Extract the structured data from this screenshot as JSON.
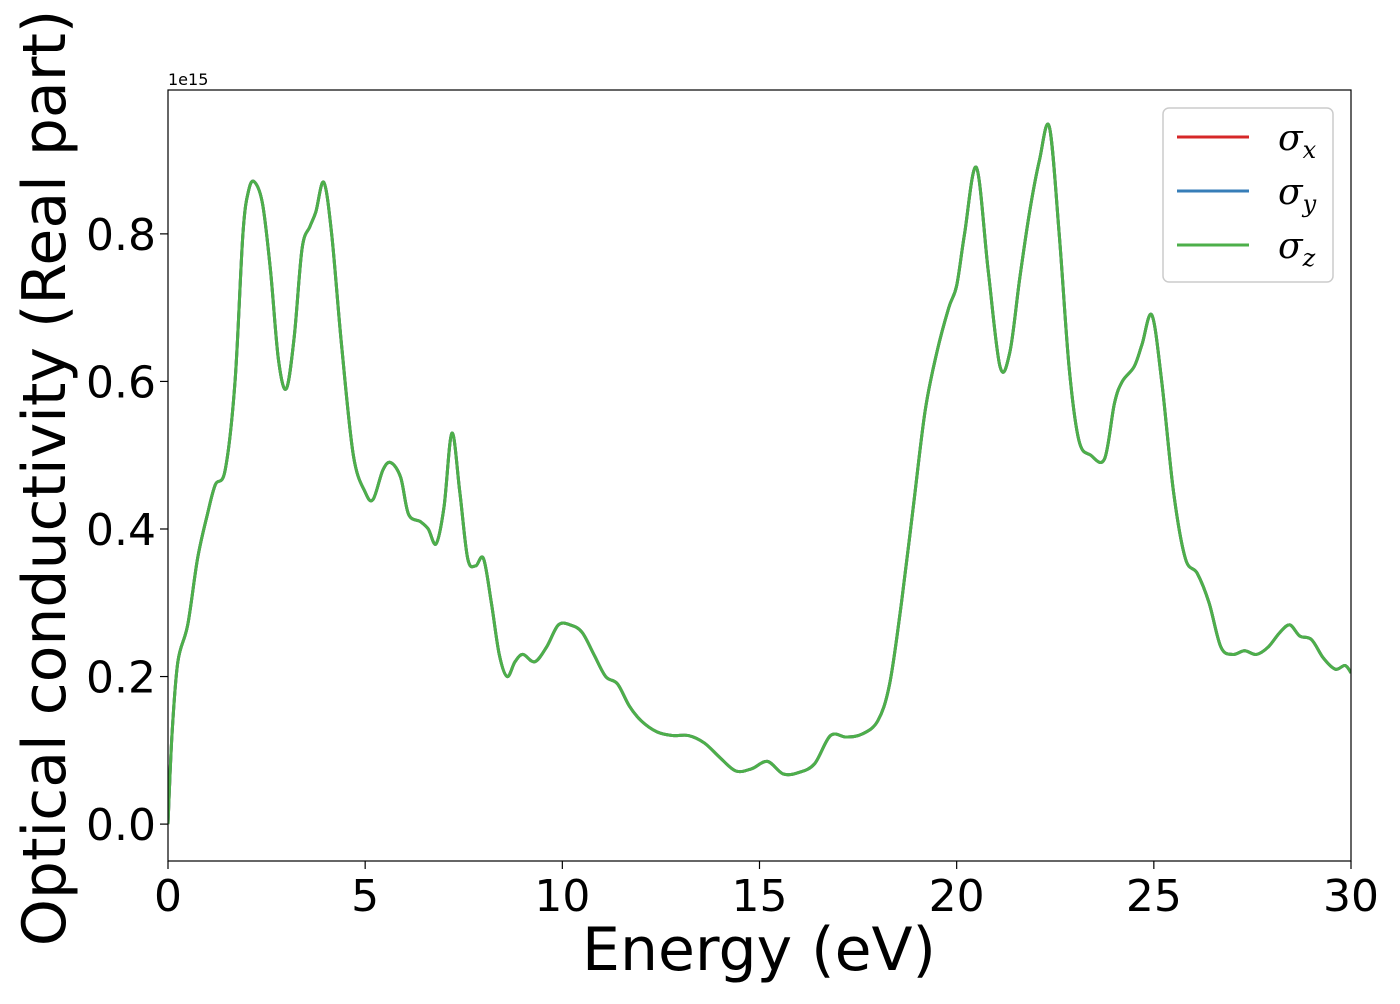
{
  "chart_data": {
    "type": "line",
    "title": "",
    "xlabel": "Energy (eV)",
    "ylabel": "Optical conductivity (Real part)",
    "y_offset_label": "1e15",
    "xlim": [
      0,
      30
    ],
    "ylim": [
      -0.05,
      0.995
    ],
    "xticks": [
      0,
      5,
      10,
      15,
      20,
      25,
      30
    ],
    "xtick_labels": [
      "0",
      "5",
      "10",
      "15",
      "20",
      "25",
      "30"
    ],
    "yticks": [
      0.0,
      0.2,
      0.4,
      0.6,
      0.8
    ],
    "ytick_labels": [
      "0.0",
      "0.2",
      "0.4",
      "0.6",
      "0.8"
    ],
    "grid": false,
    "legend_position": "top-right",
    "x": [
      0.0,
      0.1,
      0.25,
      0.5,
      0.75,
      1.0,
      1.2,
      1.45,
      1.7,
      1.9,
      2.05,
      2.2,
      2.4,
      2.6,
      2.8,
      3.0,
      3.2,
      3.4,
      3.6,
      3.75,
      3.95,
      4.15,
      4.4,
      4.7,
      5.0,
      5.2,
      5.45,
      5.65,
      5.9,
      6.1,
      6.4,
      6.6,
      6.8,
      7.0,
      7.2,
      7.4,
      7.6,
      7.8,
      8.0,
      8.2,
      8.4,
      8.6,
      8.8,
      9.0,
      9.3,
      9.6,
      9.9,
      10.2,
      10.5,
      10.8,
      11.1,
      11.4,
      11.7,
      12.0,
      12.4,
      12.8,
      13.2,
      13.6,
      14.0,
      14.4,
      14.8,
      15.2,
      15.6,
      16.0,
      16.4,
      16.8,
      17.2,
      17.6,
      18.0,
      18.3,
      18.6,
      18.9,
      19.2,
      19.5,
      19.8,
      20.0,
      20.2,
      20.5,
      20.8,
      21.1,
      21.35,
      21.6,
      21.85,
      22.1,
      22.35,
      22.6,
      22.85,
      23.1,
      23.4,
      23.75,
      24.0,
      24.2,
      24.5,
      24.7,
      24.95,
      25.2,
      25.5,
      25.8,
      26.1,
      26.4,
      26.7,
      27.0,
      27.3,
      27.6,
      27.9,
      28.2,
      28.45,
      28.7,
      29.0,
      29.3,
      29.6,
      29.85,
      30.0
    ],
    "series": [
      {
        "name": "σx",
        "color": "#d62728",
        "values": [
          0.0,
          0.12,
          0.22,
          0.27,
          0.36,
          0.42,
          0.46,
          0.48,
          0.6,
          0.8,
          0.86,
          0.87,
          0.84,
          0.75,
          0.63,
          0.59,
          0.66,
          0.78,
          0.81,
          0.83,
          0.87,
          0.8,
          0.65,
          0.5,
          0.45,
          0.44,
          0.48,
          0.49,
          0.47,
          0.42,
          0.41,
          0.4,
          0.38,
          0.43,
          0.53,
          0.45,
          0.36,
          0.35,
          0.36,
          0.3,
          0.23,
          0.2,
          0.22,
          0.23,
          0.22,
          0.24,
          0.27,
          0.27,
          0.26,
          0.23,
          0.2,
          0.19,
          0.16,
          0.14,
          0.125,
          0.12,
          0.12,
          0.11,
          0.09,
          0.072,
          0.075,
          0.085,
          0.068,
          0.07,
          0.082,
          0.12,
          0.118,
          0.122,
          0.14,
          0.19,
          0.3,
          0.43,
          0.56,
          0.64,
          0.7,
          0.73,
          0.8,
          0.89,
          0.75,
          0.62,
          0.64,
          0.74,
          0.83,
          0.9,
          0.945,
          0.8,
          0.62,
          0.52,
          0.5,
          0.495,
          0.57,
          0.6,
          0.62,
          0.65,
          0.69,
          0.6,
          0.45,
          0.36,
          0.34,
          0.3,
          0.24,
          0.23,
          0.235,
          0.23,
          0.24,
          0.26,
          0.27,
          0.255,
          0.25,
          0.225,
          0.21,
          0.215,
          0.205
        ]
      },
      {
        "name": "σy",
        "color": "#377eb8",
        "values": [
          0.0,
          0.12,
          0.22,
          0.27,
          0.36,
          0.42,
          0.46,
          0.48,
          0.6,
          0.8,
          0.86,
          0.87,
          0.84,
          0.75,
          0.63,
          0.59,
          0.66,
          0.78,
          0.81,
          0.83,
          0.87,
          0.8,
          0.65,
          0.5,
          0.45,
          0.44,
          0.48,
          0.49,
          0.47,
          0.42,
          0.41,
          0.4,
          0.38,
          0.43,
          0.53,
          0.45,
          0.36,
          0.35,
          0.36,
          0.3,
          0.23,
          0.2,
          0.22,
          0.23,
          0.22,
          0.24,
          0.27,
          0.27,
          0.26,
          0.23,
          0.2,
          0.19,
          0.16,
          0.14,
          0.125,
          0.12,
          0.12,
          0.11,
          0.09,
          0.072,
          0.075,
          0.085,
          0.068,
          0.07,
          0.082,
          0.12,
          0.118,
          0.122,
          0.14,
          0.19,
          0.3,
          0.43,
          0.56,
          0.64,
          0.7,
          0.73,
          0.8,
          0.89,
          0.75,
          0.62,
          0.64,
          0.74,
          0.83,
          0.9,
          0.945,
          0.8,
          0.62,
          0.52,
          0.5,
          0.495,
          0.57,
          0.6,
          0.62,
          0.65,
          0.69,
          0.6,
          0.45,
          0.36,
          0.34,
          0.3,
          0.24,
          0.23,
          0.235,
          0.23,
          0.24,
          0.26,
          0.27,
          0.255,
          0.25,
          0.225,
          0.21,
          0.215,
          0.205
        ]
      },
      {
        "name": "σz",
        "color": "#4daf4a",
        "values": [
          0.0,
          0.12,
          0.22,
          0.27,
          0.36,
          0.42,
          0.46,
          0.48,
          0.6,
          0.8,
          0.86,
          0.87,
          0.84,
          0.75,
          0.63,
          0.59,
          0.66,
          0.78,
          0.81,
          0.83,
          0.87,
          0.8,
          0.65,
          0.5,
          0.45,
          0.44,
          0.48,
          0.49,
          0.47,
          0.42,
          0.41,
          0.4,
          0.38,
          0.43,
          0.53,
          0.45,
          0.36,
          0.35,
          0.36,
          0.3,
          0.23,
          0.2,
          0.22,
          0.23,
          0.22,
          0.24,
          0.27,
          0.27,
          0.26,
          0.23,
          0.2,
          0.19,
          0.16,
          0.14,
          0.125,
          0.12,
          0.12,
          0.11,
          0.09,
          0.072,
          0.075,
          0.085,
          0.068,
          0.07,
          0.082,
          0.12,
          0.118,
          0.122,
          0.14,
          0.19,
          0.3,
          0.43,
          0.56,
          0.64,
          0.7,
          0.73,
          0.8,
          0.89,
          0.75,
          0.62,
          0.64,
          0.74,
          0.83,
          0.9,
          0.945,
          0.8,
          0.62,
          0.52,
          0.5,
          0.495,
          0.57,
          0.6,
          0.62,
          0.65,
          0.69,
          0.6,
          0.45,
          0.36,
          0.34,
          0.3,
          0.24,
          0.23,
          0.235,
          0.23,
          0.24,
          0.26,
          0.27,
          0.255,
          0.25,
          0.225,
          0.21,
          0.215,
          0.205
        ]
      }
    ],
    "legend": [
      {
        "symbol": "σ",
        "sub": "x"
      },
      {
        "symbol": "σ",
        "sub": "y"
      },
      {
        "symbol": "σ",
        "sub": "z"
      }
    ]
  }
}
